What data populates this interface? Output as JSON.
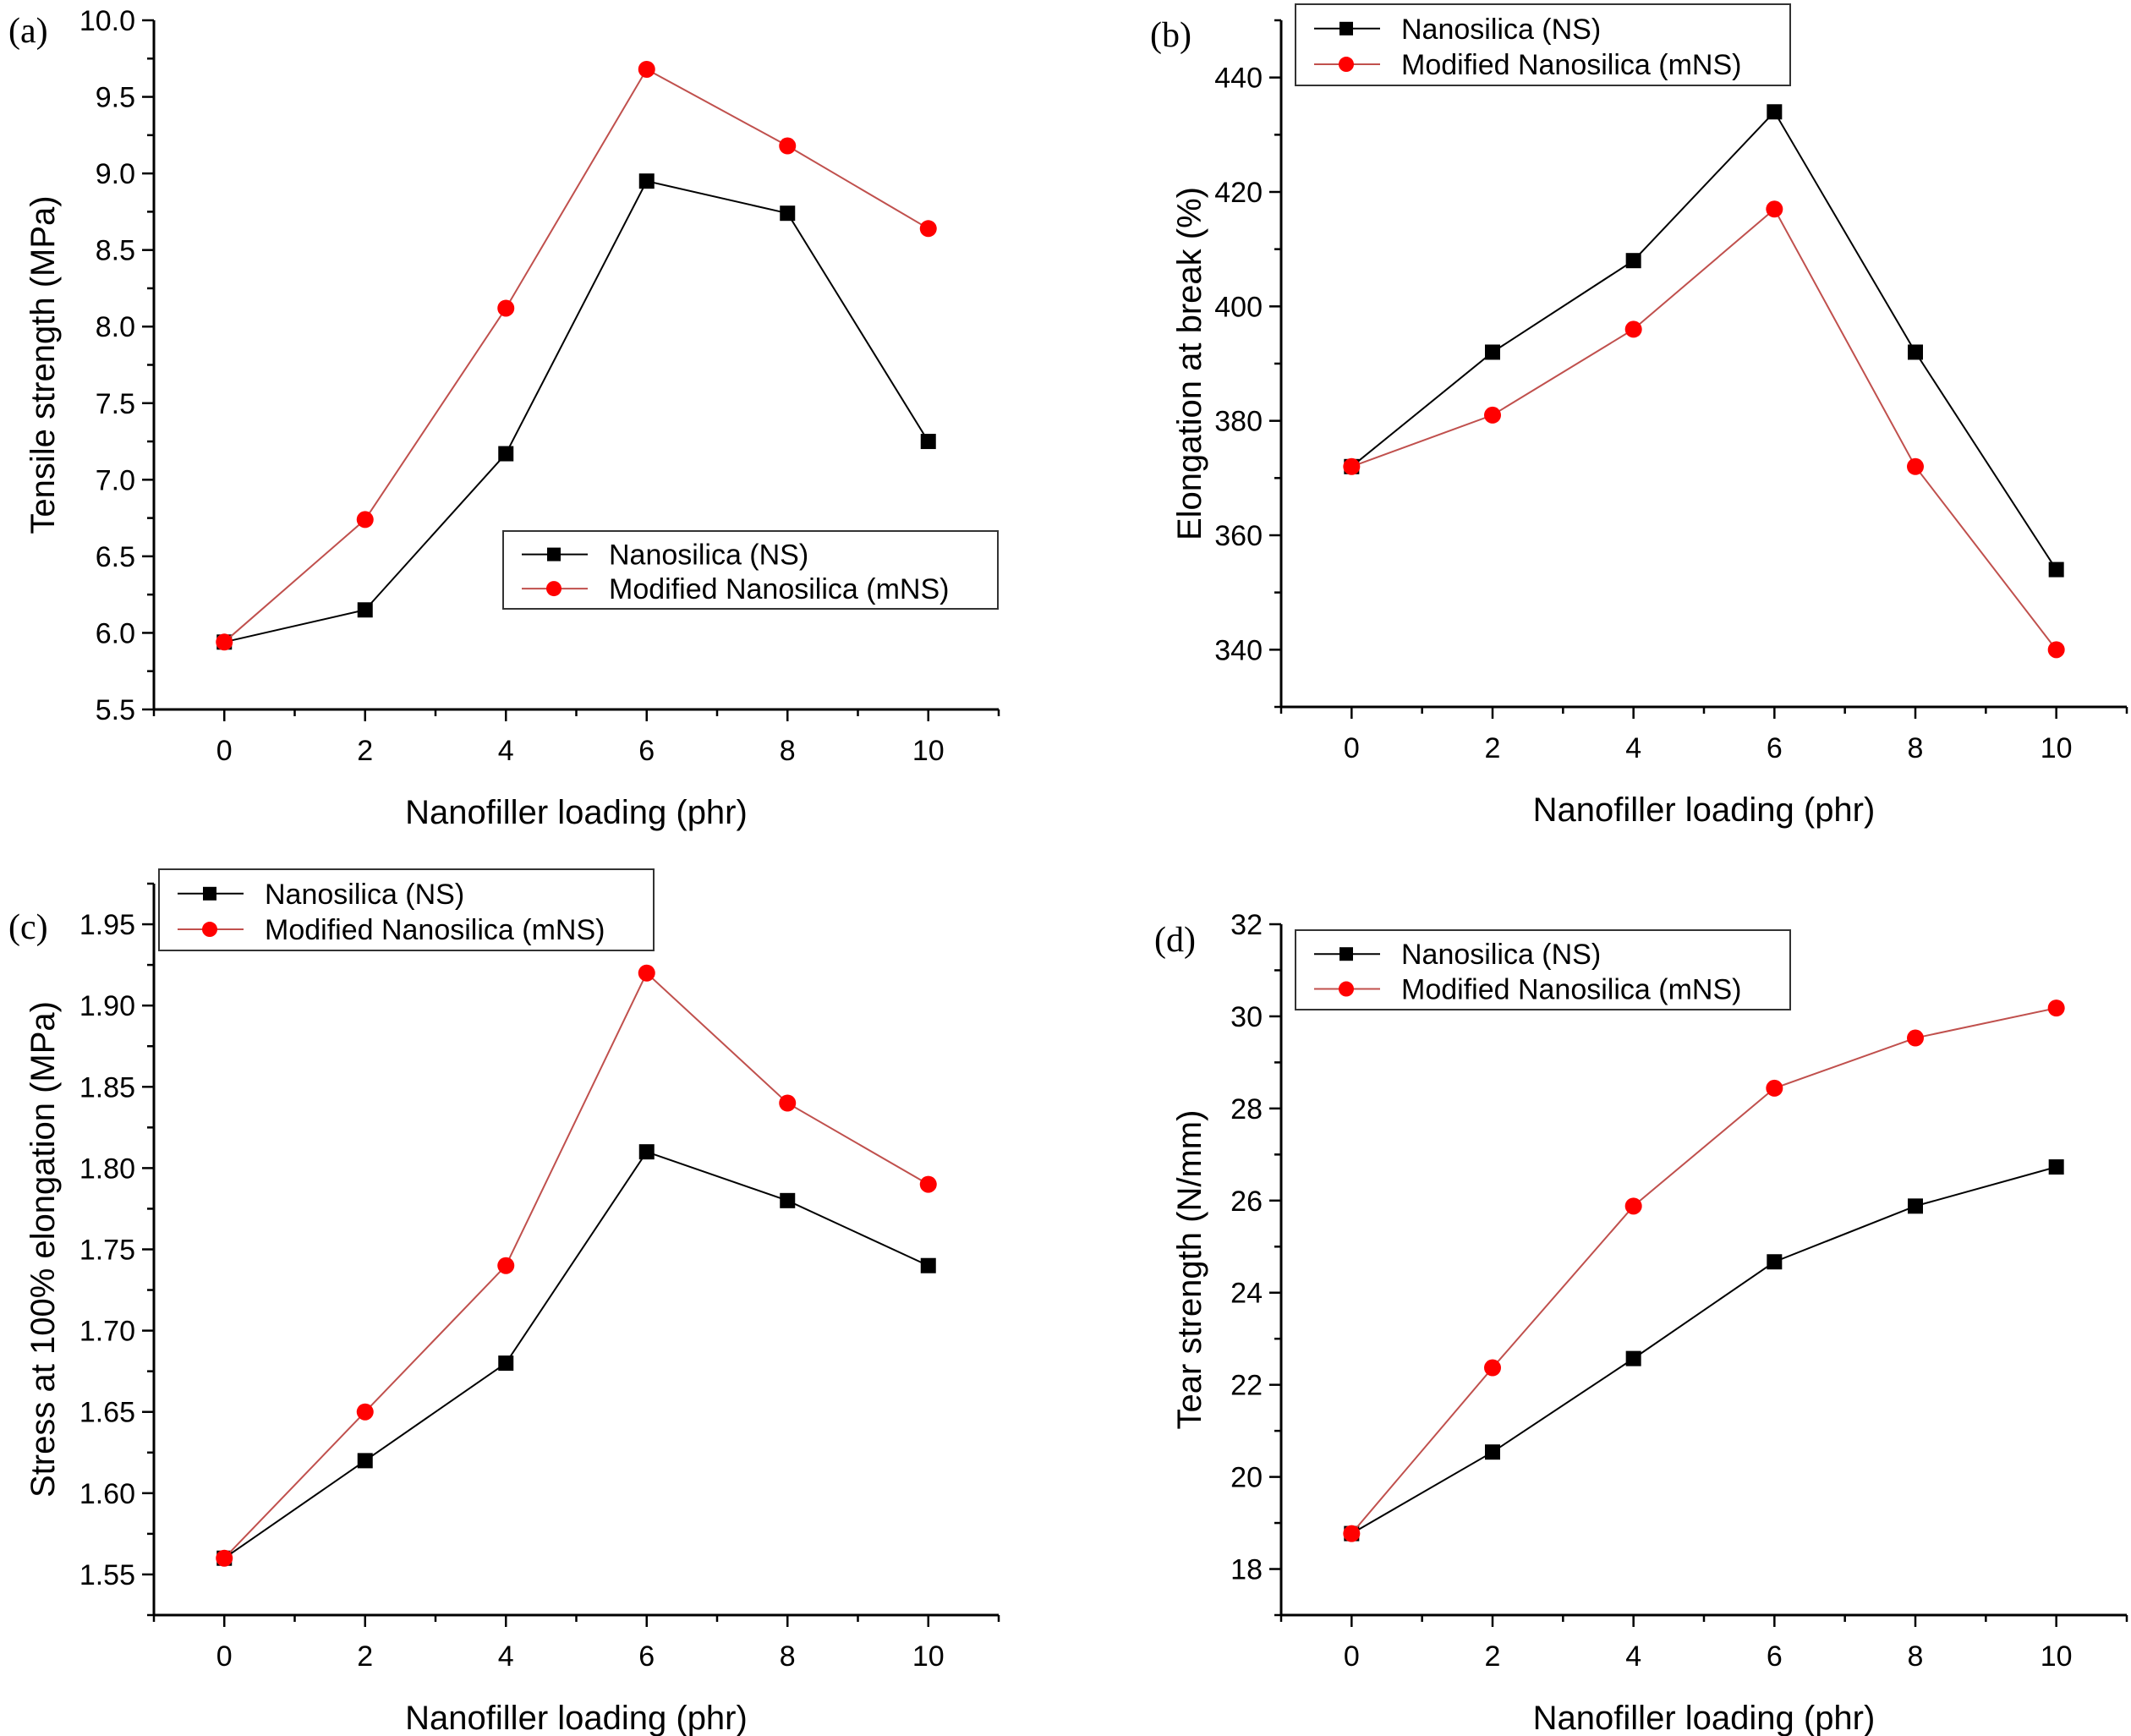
{
  "colors": {
    "ns": "#000000",
    "mns": "#ff0000",
    "mns_line": "#c0504d"
  },
  "chart_data": [
    {
      "panel": "(a)",
      "type": "line",
      "xlabel": "Nanofiller loading (phr)",
      "ylabel": "Tensile strength (MPa)",
      "x": [
        0,
        2,
        4,
        6,
        8,
        10
      ],
      "xlim": [
        -1,
        11
      ],
      "xticks": [
        0,
        2,
        4,
        6,
        8,
        10
      ],
      "ylim": [
        5.5,
        10.0
      ],
      "yticks": [
        "5.5",
        "6.0",
        "6.5",
        "7.0",
        "7.5",
        "8.0",
        "8.5",
        "9.0",
        "9.5",
        "10.0"
      ],
      "grid": false,
      "legend": "center-right",
      "series": [
        {
          "name": "Nanosilica (NS)",
          "marker": "square",
          "values": [
            5.94,
            6.15,
            7.17,
            8.95,
            8.74,
            7.25
          ]
        },
        {
          "name": "Modified Nanosilica (mNS)",
          "marker": "circle",
          "values": [
            5.94,
            6.74,
            8.12,
            9.68,
            9.18,
            8.64
          ]
        }
      ]
    },
    {
      "panel": "(b)",
      "type": "line",
      "xlabel": "Nanofiller loading (phr)",
      "ylabel": "Elongation at break (%)",
      "x": [
        0,
        2,
        4,
        6,
        8,
        10
      ],
      "xlim": [
        -1,
        11
      ],
      "xticks": [
        0,
        2,
        4,
        6,
        8,
        10
      ],
      "ylim": [
        330,
        450
      ],
      "yticks": [
        "340",
        "360",
        "380",
        "400",
        "420",
        "440"
      ],
      "grid": false,
      "legend": "top-left",
      "series": [
        {
          "name": "Nanosilica (NS)",
          "marker": "square",
          "values": [
            372,
            392,
            408,
            434,
            392,
            354
          ]
        },
        {
          "name": "Modified Nanosilica (mNS)",
          "marker": "circle",
          "values": [
            372,
            381,
            396,
            417,
            372,
            340
          ]
        }
      ]
    },
    {
      "panel": "(c)",
      "type": "line",
      "xlabel": "Nanofiller loading (phr)",
      "ylabel": "Stress at 100% elongation (MPa)",
      "x": [
        0,
        2,
        4,
        6,
        8,
        10
      ],
      "xlim": [
        -1,
        11
      ],
      "xticks": [
        0,
        2,
        4,
        6,
        8,
        10
      ],
      "ylim": [
        1.525,
        1.975
      ],
      "yticks": [
        "1.55",
        "1.60",
        "1.65",
        "1.70",
        "1.75",
        "1.80",
        "1.85",
        "1.90",
        "1.95"
      ],
      "grid": false,
      "legend": "top-left",
      "series": [
        {
          "name": "Nanosilica (NS)",
          "marker": "square",
          "values": [
            1.56,
            1.62,
            1.68,
            1.81,
            1.78,
            1.74
          ]
        },
        {
          "name": "Modified Nanosilica (mNS)",
          "marker": "circle",
          "values": [
            1.56,
            1.65,
            1.74,
            1.92,
            1.84,
            1.79
          ]
        }
      ]
    },
    {
      "panel": "(d)",
      "type": "line",
      "xlabel": "Nanofiller loading (phr)",
      "ylabel": "Tear strength (N/mm)",
      "x": [
        0,
        2,
        4,
        6,
        8,
        10
      ],
      "xlim": [
        -1,
        11
      ],
      "xticks": [
        0,
        2,
        4,
        6,
        8,
        10
      ],
      "ylim": [
        17,
        32
      ],
      "yticks": [
        "18",
        "20",
        "22",
        "24",
        "26",
        "28",
        "30",
        "32"
      ],
      "grid": false,
      "legend": "top-left",
      "series": [
        {
          "name": "Nanosilica (NS)",
          "marker": "square",
          "values": [
            18.77,
            20.54,
            22.57,
            24.67,
            25.88,
            26.73
          ]
        },
        {
          "name": "Modified Nanosilica (mNS)",
          "marker": "circle",
          "values": [
            18.77,
            22.37,
            25.88,
            28.44,
            29.53,
            30.18
          ]
        }
      ]
    }
  ]
}
